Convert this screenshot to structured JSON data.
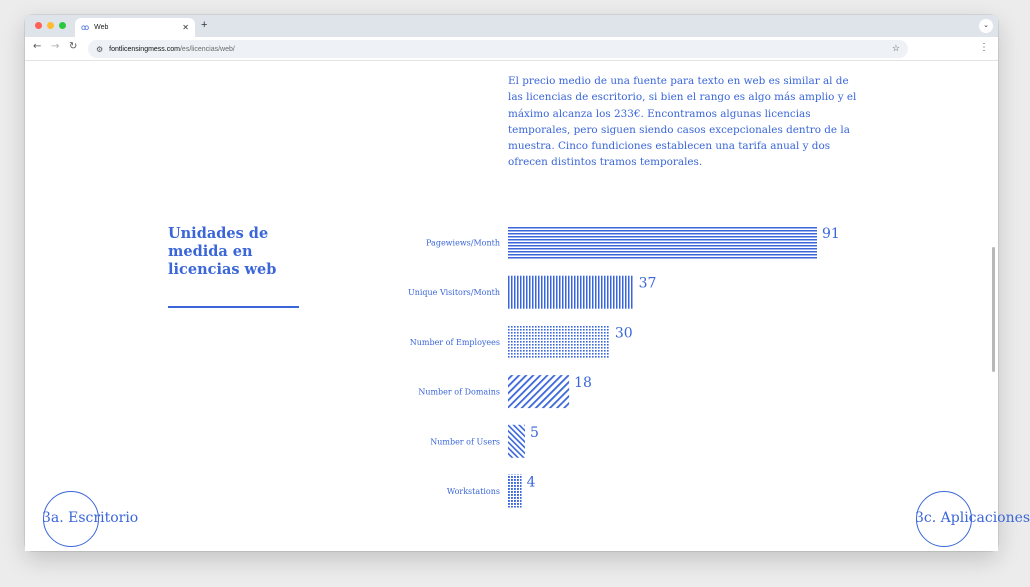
{
  "browser": {
    "tab_title": "Web",
    "url_host": "fontlicensingmess.com",
    "url_path": "/es/licencias/web/"
  },
  "page": {
    "intro": "El precio medio de una fuente para texto en web es similar al de las licencias de escritorio, si bien el rango es algo más amplio y el máximo alcanza los 233€. Encontramos algunas licencias temporales, pero siguen siendo casos excepcionales dentro de la muestra. Cinco fundiciones establecen una tarifa anual y dos ofrecen distintos tramos temporales.",
    "section_title": "Unidades de medida en licencias web",
    "prev_label": "3a. Escritorio",
    "next_label": "3c. Aplicaciones"
  },
  "chart_data": {
    "type": "bar",
    "orientation": "horizontal",
    "categories": [
      "Pagewiews/Month",
      "Unique Visitors/Month",
      "Number of Employees",
      "Number of Domains",
      "Number of Users",
      "Workstations"
    ],
    "values": [
      91,
      37,
      30,
      18,
      5,
      4
    ],
    "patterns": [
      "horizontal-lines",
      "vertical-lines",
      "dots",
      "diagonal-lines",
      "diagonal-lines-reverse",
      "grid"
    ],
    "color": "#3a66d9",
    "xlim": [
      0,
      91
    ],
    "grid": false,
    "legend": "none"
  }
}
